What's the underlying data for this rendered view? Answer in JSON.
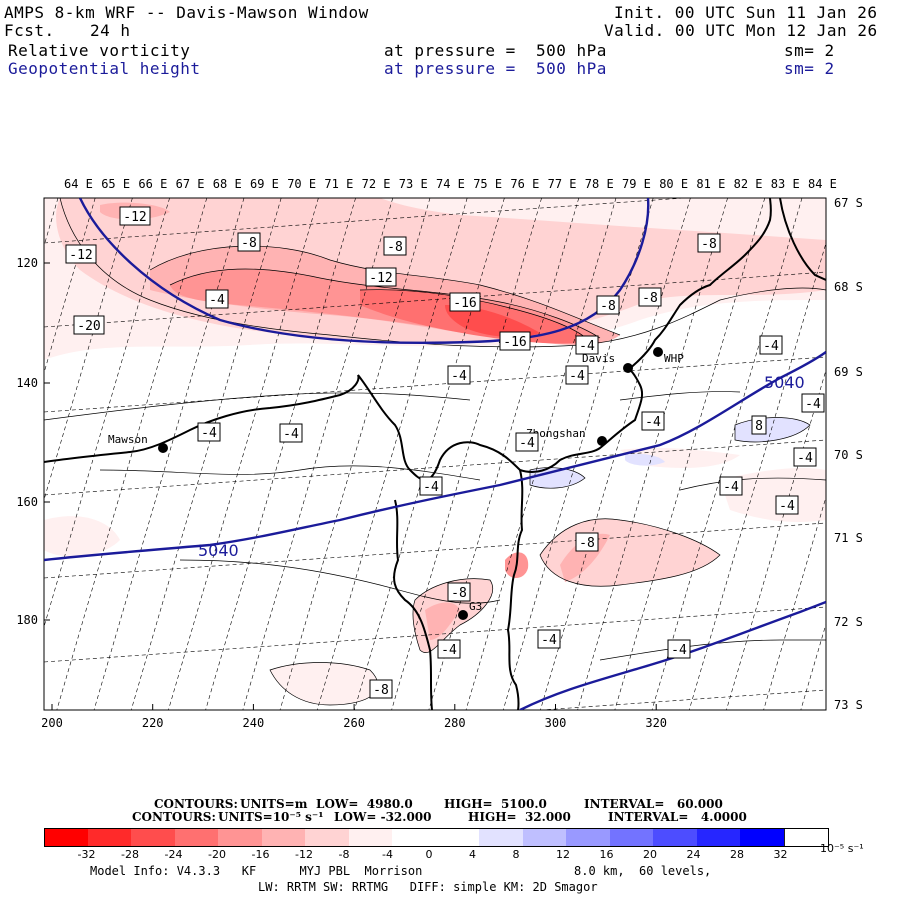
{
  "header": {
    "title": "AMPS 8-km WRF -- Davis-Mawson Window",
    "fcst_label": "Fcst.",
    "fcst_value": "24 h",
    "init": "Init. 00 UTC Sun 11 Jan 26",
    "valid": "Valid. 00 UTC Mon 12 Jan 26",
    "field1": {
      "name": "Relative vorticity",
      "level": "at pressure =  500 hPa",
      "sm": "sm= 2"
    },
    "field2": {
      "name": "Geopotential height",
      "level": "at pressure =  500 hPa",
      "sm": "sm= 2"
    }
  },
  "map": {
    "lon_labels": [
      "64 E",
      "65 E",
      "66 E",
      "67 E",
      "68 E",
      "69 E",
      "70 E",
      "71 E",
      "72 E",
      "73 E",
      "74 E",
      "75 E",
      "76 E",
      "77 E",
      "78 E",
      "79 E",
      "80 E",
      "81 E",
      "82 E",
      "83 E",
      "84 E"
    ],
    "lat_labels": [
      "67 S",
      "68 S",
      "69 S",
      "70 S",
      "71 S",
      "72 S",
      "73 S"
    ],
    "x_ticks": [
      "200",
      "220",
      "240",
      "260",
      "280",
      "300",
      "320"
    ],
    "y_ticks": [
      "120",
      "140",
      "160",
      "180"
    ],
    "stations": [
      "Mawson",
      "Davis",
      "WHP",
      "Zhongshan",
      "G3"
    ],
    "height_labels": [
      "5040",
      "5040"
    ],
    "vort_labels": [
      "-12",
      "-8",
      "-8",
      "-8",
      "-12",
      "-12",
      "-4",
      "-16",
      "-8",
      "-8",
      "-20",
      "-16",
      "-4",
      "-4",
      "-4",
      "-4",
      "-4",
      "-4",
      "-4",
      "-4",
      "8",
      "-4",
      "-4",
      "-4",
      "-4",
      "-4",
      "-8",
      "-8",
      "-4",
      "-4",
      "-4",
      "-8"
    ]
  },
  "contours": {
    "line1": {
      "label": "CONTOURS:",
      "units": "UNITS=m",
      "low": "LOW=  4980.0",
      "high": "HIGH=  5100.0",
      "interval": "INTERVAL=   60.000"
    },
    "line2": {
      "label": "CONTOURS:",
      "units": "UNITS=10⁻⁵ s⁻¹",
      "low": "LOW= -32.000",
      "high": "HIGH=  32.000",
      "interval": "INTERVAL=   4.0000"
    }
  },
  "colorbar": {
    "labels": [
      "-32",
      "-28",
      "-24",
      "-20",
      "-16",
      "-12",
      "-8",
      "-4",
      "0",
      "4",
      "8",
      "12",
      "16",
      "20",
      "24",
      "28",
      "32"
    ],
    "units": "10⁻⁵ s⁻¹",
    "colors": [
      "#ff0000",
      "#ff2a2a",
      "#ff4d4d",
      "#ff7070",
      "#ff9494",
      "#ffb3b3",
      "#ffd3d3",
      "#fff0f0",
      "#ffffff",
      "#ffffff",
      "#e2e2ff",
      "#bfbfff",
      "#9999ff",
      "#7373ff",
      "#4d4dff",
      "#2626ff",
      "#0000ff"
    ]
  },
  "footer": {
    "model_info": "Model Info: V4.3.3   KF      MYJ PBL  Morrison",
    "resolution": "8.0 km,  60 levels,",
    "physics": "LW: RRTM SW: RRTMG   DIFF: simple KM: 2D Smagor"
  }
}
